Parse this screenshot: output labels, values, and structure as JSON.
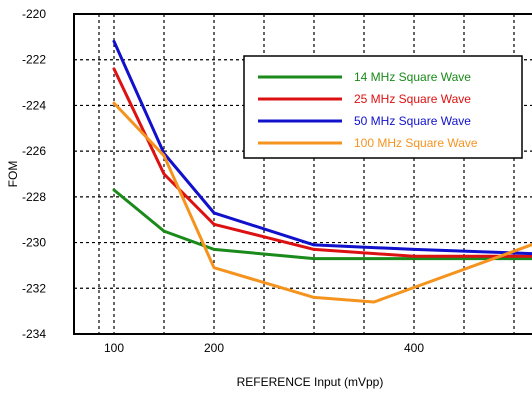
{
  "chart_data": {
    "type": "line",
    "title": "",
    "xlabel": "REFERENCE Input (mVpp)",
    "ylabel": "FOM",
    "xlim": [
      60,
      530
    ],
    "ylim": [
      -234,
      -220
    ],
    "x_ticks": [
      100,
      200,
      400
    ],
    "x_tick_labels": [
      "100",
      "200",
      "400"
    ],
    "y_ticks": [
      -234,
      -232,
      -230,
      -228,
      -226,
      -224,
      -222,
      -220
    ],
    "y_tick_labels": [
      "-234",
      "-232",
      "-230",
      "-228",
      "-226",
      "-224",
      "-222",
      "-220"
    ],
    "grid": true,
    "legend_position": "top-right",
    "series": [
      {
        "name": "14 MHz Square Wave",
        "color": "#1a8a1a",
        "x": [
          100,
          150,
          200,
          300,
          400,
          530
        ],
        "y": [
          -227.7,
          -229.5,
          -230.3,
          -230.7,
          -230.7,
          -230.7
        ]
      },
      {
        "name": "25 MHz Square Wave",
        "color": "#dd1111",
        "x": [
          100,
          150,
          200,
          300,
          400,
          530
        ],
        "y": [
          -222.4,
          -227.0,
          -229.2,
          -230.3,
          -230.6,
          -230.6
        ]
      },
      {
        "name": "50 MHz Square Wave",
        "color": "#1111cc",
        "x": [
          100,
          150,
          200,
          300,
          400,
          530
        ],
        "y": [
          -221.2,
          -226.1,
          -228.7,
          -230.1,
          -230.3,
          -230.5
        ]
      },
      {
        "name": "100 MHz Square Wave",
        "color": "#f5931f",
        "x": [
          100,
          150,
          200,
          300,
          360,
          530
        ],
        "y": [
          -223.9,
          -226.2,
          -231.1,
          -232.4,
          -232.6,
          -229.9
        ]
      }
    ]
  }
}
